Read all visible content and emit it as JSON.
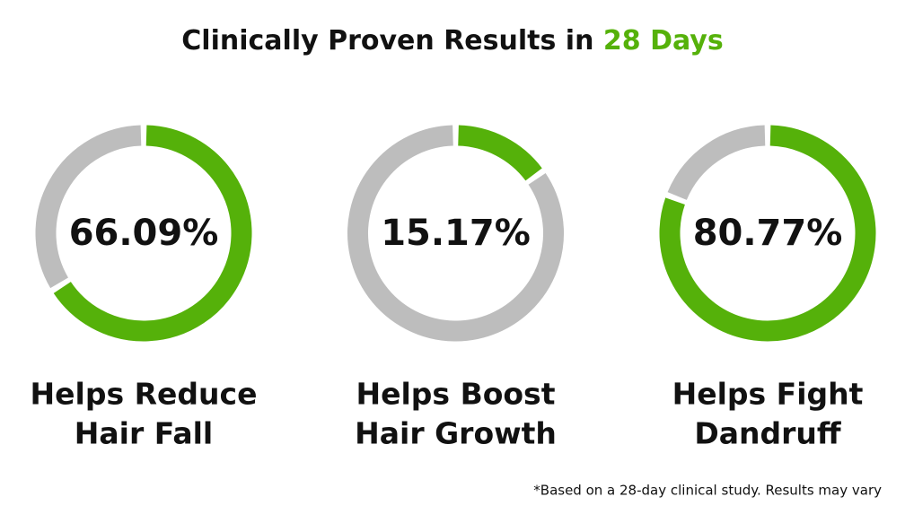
{
  "title": {
    "text": "Clinically Proven Results in",
    "highlight": "28 Days",
    "highlight_color": "#55b10a"
  },
  "chart_data": [
    {
      "type": "donut",
      "label": [
        "Helps Reduce",
        "Hair Fall"
      ],
      "values": [
        66.09
      ],
      "value_labels": [
        "66.09%"
      ],
      "color": "#55b10a",
      "track_color": "#bdbdbd"
    },
    {
      "type": "donut",
      "label": [
        "Helps Boost",
        "Hair Growth"
      ],
      "values": [
        15.17
      ],
      "value_labels": [
        "15.17%"
      ],
      "color": "#55b10a",
      "track_color": "#bdbdbd"
    },
    {
      "type": "donut",
      "label": [
        "Helps Fight",
        "Dandruff"
      ],
      "values": [
        80.77
      ],
      "value_labels": [
        "80.77%"
      ],
      "color": "#55b10a",
      "track_color": "#bdbdbd"
    }
  ],
  "footnote": "*Based on a 28-day clinical study. Results may vary"
}
